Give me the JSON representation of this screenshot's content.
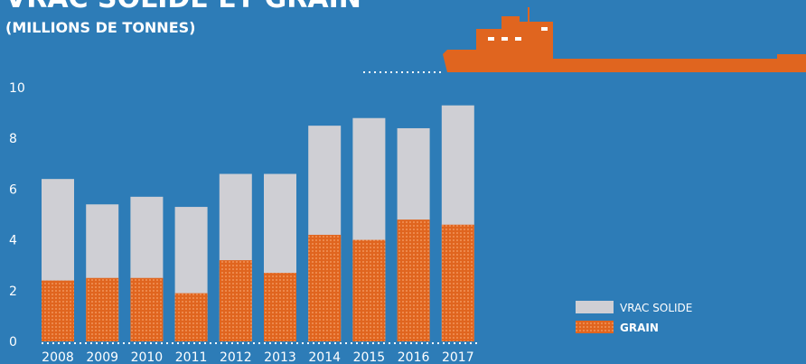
{
  "chart_data": {
    "type": "bar",
    "title": "VRAC SOLIDE ET GRAIN",
    "subtitle": "(MILLIONS DE TONNES)",
    "categories": [
      "2008",
      "2009",
      "2010",
      "2011",
      "2012",
      "2013",
      "2014",
      "2015",
      "2016",
      "2017"
    ],
    "series": [
      {
        "name": "VRAC SOLIDE",
        "color": "#cfcfd4",
        "values": [
          6.4,
          5.4,
          5.7,
          5.3,
          6.6,
          6.6,
          8.5,
          8.8,
          8.4,
          9.3
        ]
      },
      {
        "name": "GRAIN",
        "color": "#e0651f",
        "values": [
          2.4,
          2.5,
          2.5,
          1.9,
          3.2,
          2.7,
          4.2,
          4.0,
          4.8,
          4.6
        ]
      }
    ],
    "ylim": [
      0,
      10
    ],
    "yticks": [
      0,
      2,
      4,
      6,
      8,
      10
    ],
    "grid": false,
    "legend": "bottom-right"
  }
}
